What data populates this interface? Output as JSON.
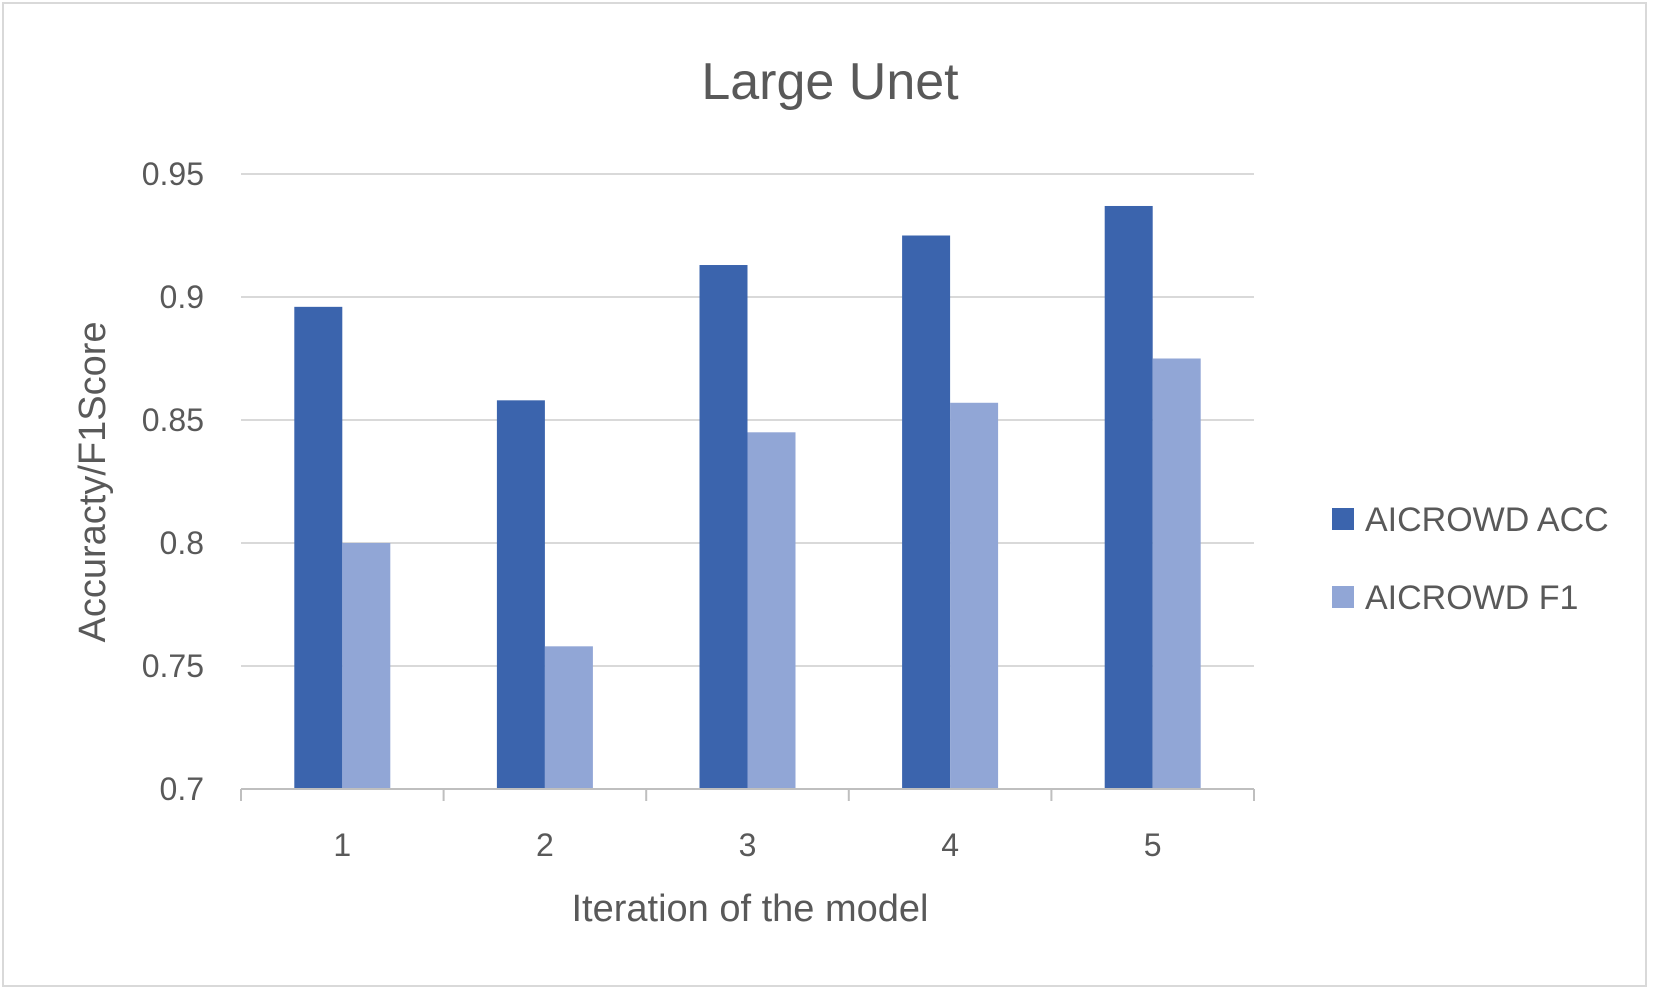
{
  "chart_data": {
    "type": "bar",
    "title": "Large Unet",
    "xlabel": "Iteration of the model",
    "ylabel": "Accuracty/F1Score",
    "categories": [
      "1",
      "2",
      "3",
      "4",
      "5"
    ],
    "series": [
      {
        "name": "AICROWD ACC",
        "color": "#3b64ad",
        "values": [
          0.896,
          0.858,
          0.913,
          0.925,
          0.937
        ]
      },
      {
        "name": "AICROWD F1",
        "color": "#91a6d6",
        "values": [
          0.8,
          0.758,
          0.845,
          0.857,
          0.875
        ]
      }
    ],
    "ylim": [
      0.7,
      0.95
    ],
    "yticks": [
      "0.7",
      "0.75",
      "0.8",
      "0.85",
      "0.9",
      "0.95"
    ],
    "grid": true,
    "legend": "right"
  }
}
